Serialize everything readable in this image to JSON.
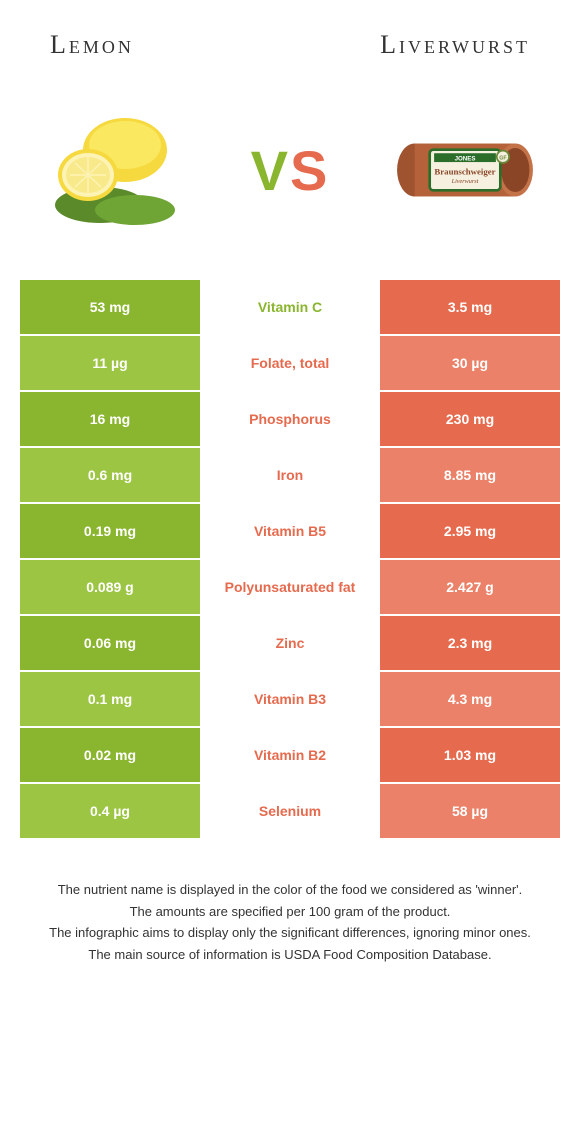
{
  "header": {
    "left": "Lemon",
    "right": "Liverwurst"
  },
  "vs": {
    "v": "V",
    "s": "S"
  },
  "colors": {
    "left_dark": "#8ab52e",
    "left_light": "#9cc544",
    "right_dark": "#e66a4e",
    "right_light": "#ea8168",
    "green_text": "#8ab52e",
    "orange_text": "#e66a4e"
  },
  "rows": [
    {
      "left": "53 mg",
      "label": "Vitamin C",
      "right": "3.5 mg",
      "winner": "left"
    },
    {
      "left": "11 µg",
      "label": "Folate, total",
      "right": "30 µg",
      "winner": "right"
    },
    {
      "left": "16 mg",
      "label": "Phosphorus",
      "right": "230 mg",
      "winner": "right"
    },
    {
      "left": "0.6 mg",
      "label": "Iron",
      "right": "8.85 mg",
      "winner": "right"
    },
    {
      "left": "0.19 mg",
      "label": "Vitamin B5",
      "right": "2.95 mg",
      "winner": "right"
    },
    {
      "left": "0.089 g",
      "label": "Polyunsaturated fat",
      "right": "2.427 g",
      "winner": "right"
    },
    {
      "left": "0.06 mg",
      "label": "Zinc",
      "right": "2.3 mg",
      "winner": "right"
    },
    {
      "left": "0.1 mg",
      "label": "Vitamin B3",
      "right": "4.3 mg",
      "winner": "right"
    },
    {
      "left": "0.02 mg",
      "label": "Vitamin B2",
      "right": "1.03 mg",
      "winner": "right"
    },
    {
      "left": "0.4 µg",
      "label": "Selenium",
      "right": "58 µg",
      "winner": "right"
    }
  ],
  "footer": {
    "l1": "The nutrient name is displayed in the color of the food we considered as 'winner'.",
    "l2": "The amounts are specified per 100 gram of the product.",
    "l3": "The infographic aims to display only the significant differences, ignoring minor ones.",
    "l4": "The main source of information is USDA Food Composition Database."
  },
  "liver_label": {
    "brand": "JONES",
    "name": "Braunschweiger",
    "sub": "Liverwurst"
  }
}
